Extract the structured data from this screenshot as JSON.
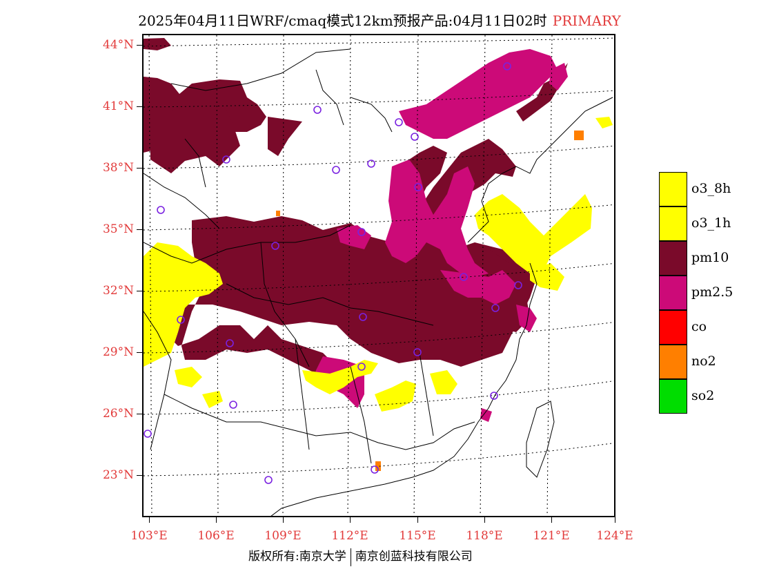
{
  "header": {
    "title": "2025年04月11日WRF/cmaq模式12km预报产品:04月11日02时",
    "tag": "PRIMARY",
    "tag_color": "#e23a3a"
  },
  "map": {
    "lat_labels": [
      "44°N",
      "41°N",
      "38°N",
      "35°N",
      "32°N",
      "29°N",
      "26°N",
      "23°N"
    ],
    "lon_labels": [
      "103°E",
      "106°E",
      "109°E",
      "112°E",
      "115°E",
      "118°E",
      "121°E",
      "124°E"
    ],
    "label_color": "#e23a3a"
  },
  "legend": {
    "items": [
      {
        "label": "o3_8h",
        "color": "#ffff00"
      },
      {
        "label": "o3_1h",
        "color": "#ffff00"
      },
      {
        "label": "pm10",
        "color": "#7a0a2a"
      },
      {
        "label": "pm2.5",
        "color": "#cc0a78"
      },
      {
        "label": "co",
        "color": "#ff0000"
      },
      {
        "label": "no2",
        "color": "#ff7f00"
      },
      {
        "label": "so2",
        "color": "#00dd00"
      }
    ]
  },
  "footer": {
    "left": "版权所有:南京大学",
    "right": "南京创蓝科技有限公司"
  }
}
